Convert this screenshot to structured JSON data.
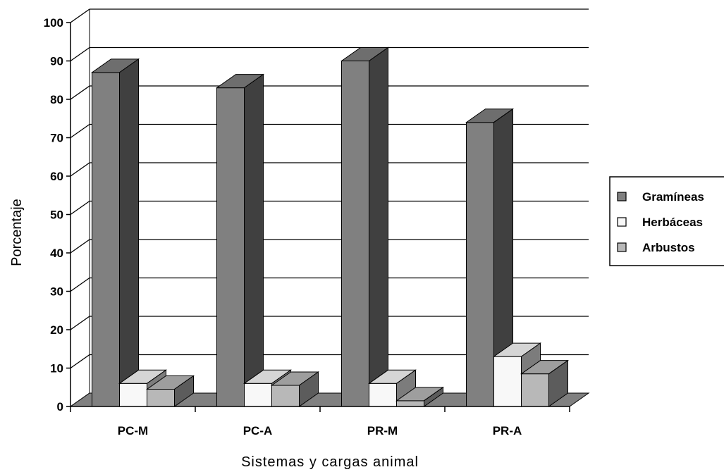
{
  "chart_data": {
    "type": "bar",
    "title": "",
    "xlabel": "Sistemas y cargas animal",
    "ylabel": "Porcentaje",
    "ylim": [
      0,
      100
    ],
    "yticks": [
      0,
      10,
      20,
      30,
      40,
      50,
      60,
      70,
      80,
      90,
      100
    ],
    "categories": [
      "PC-M",
      "PC-A",
      "PR-M",
      "PR-A"
    ],
    "series": [
      {
        "name": "Gramíneas",
        "values": [
          87,
          83,
          90,
          74
        ],
        "color": "#808080"
      },
      {
        "name": "Herbáceas",
        "values": [
          6,
          6,
          6,
          13
        ],
        "color": "#f8f8f8"
      },
      {
        "name": "Arbustos",
        "values": [
          4.5,
          5.5,
          1.5,
          8.5
        ],
        "color": "#b8b8b8"
      }
    ],
    "legend_position": "right",
    "grid": true,
    "style": "3d-column"
  }
}
